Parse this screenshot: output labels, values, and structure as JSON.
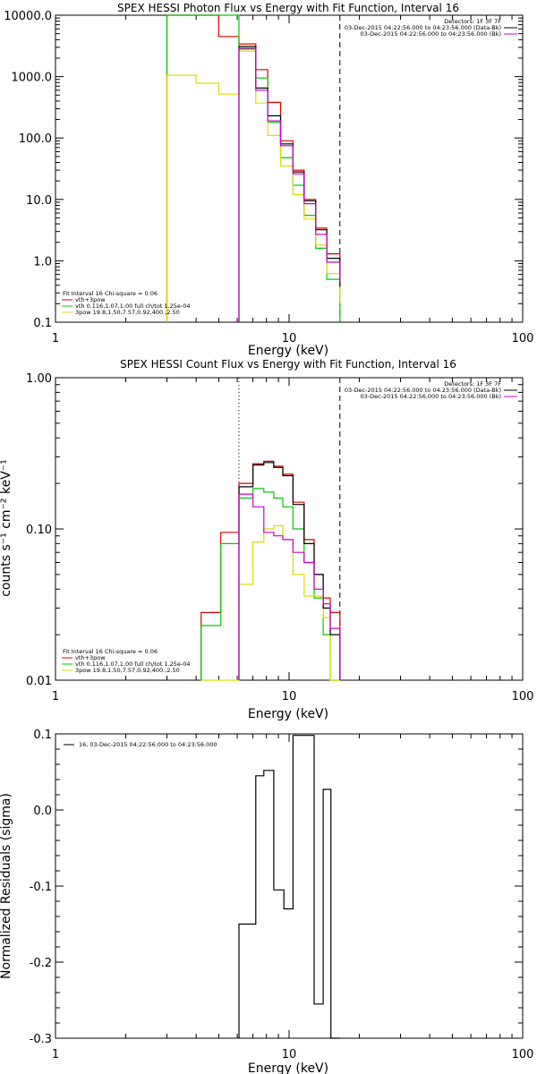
{
  "chart_data": [
    {
      "type": "line",
      "title": "SPEX HESSI Photon Flux vs Energy with Fit Function, Interval 16",
      "xlabel": "Energy (keV)",
      "xscale": "log",
      "yscale": "log",
      "xlim": [
        1,
        100
      ],
      "ylim": [
        0.1,
        10000
      ],
      "xticks": [
        "1",
        "10",
        "100"
      ],
      "yticks": [
        "0.1",
        "1.0",
        "10.0",
        "100.0",
        "1000.0",
        "10000.0"
      ],
      "vlines": [
        {
          "x": 6.1,
          "style": "dotted"
        },
        {
          "x": 16.5,
          "style": "dashed"
        }
      ],
      "legend_top_right": [
        "Detectors: 1F 3F 7F",
        "03-Dec-2015 04:22:56.000 to 04:23:56.000 (Data-Bk)",
        "03-Dec-2015 04:22:56.000 to 04:23:56.000 (Bk)"
      ],
      "legend_bottom_left": [
        "Fit Interval 16   Chi-square = 0.06",
        "vth+3pow",
        "vth 0.116,1.07,1.00  full ch/tot 1.25e-04",
        "3pow 19.8,1.50,7.57,0.92,400.,2.50"
      ],
      "colors": {
        "data": "#000000",
        "bk": "#cc00cc",
        "total": "#dd0000",
        "vth": "#00cc00",
        "pow": "#dddd00"
      },
      "edges": [
        3.0,
        4.0,
        5.0,
        6.1,
        7.2,
        8.1,
        9.2,
        10.4,
        11.6,
        13.0,
        14.5,
        16.5
      ],
      "series": [
        {
          "name": "vth+3pow",
          "color": "#dd0000",
          "values": [
            10000,
            10000,
            4500,
            3400,
            1300,
            380,
            90,
            30,
            10,
            3.4,
            1.3,
            0.5
          ]
        },
        {
          "name": "vth",
          "color": "#00cc00",
          "values": [
            10000,
            10000,
            10000,
            2800,
            950,
            180,
            48,
            17,
            5.5,
            1.6,
            0.5,
            0.1
          ]
        },
        {
          "name": "3pow",
          "color": "#dddd00",
          "values": [
            1050,
            780,
            520,
            2600,
            370,
            110,
            35,
            12,
            4.8,
            1.8,
            0.62,
            0.2
          ]
        },
        {
          "name": "Data-Bk",
          "color": "#000000",
          "values": [
            null,
            null,
            null,
            3100,
            650,
            230,
            80,
            28,
            9.5,
            3.2,
            1.1,
            0.38
          ]
        },
        {
          "name": "Bk",
          "color": "#cc00cc",
          "values": [
            null,
            null,
            null,
            2900,
            600,
            190,
            75,
            26,
            8.5,
            2.7,
            0.95,
            0.45
          ]
        }
      ]
    },
    {
      "type": "line",
      "title": "SPEX HESSI Count Flux vs Energy with Fit Function, Interval 16",
      "xlabel": "Energy (keV)",
      "ylabel": "counts s⁻¹ cm⁻² keV⁻¹",
      "xscale": "log",
      "yscale": "log",
      "xlim": [
        1,
        100
      ],
      "ylim": [
        0.01,
        1.0
      ],
      "xticks": [
        "1",
        "10",
        "100"
      ],
      "yticks": [
        "0.01",
        "0.10",
        "1.00"
      ],
      "vlines": [
        {
          "x": 6.1,
          "style": "dotted"
        },
        {
          "x": 16.5,
          "style": "dashed"
        }
      ],
      "legend_top_right": [
        "Detectors: 1F 3F 7F",
        "03-Dec-2015 04:22:56.000 to 04:23:56.000 (Data-Bk)",
        "03-Dec-2015 04:22:56.000 to 04:23:56.000 (Bk)"
      ],
      "legend_bottom_left": [
        "Fit Interval 16   Chi-square = 0.06",
        "vth+3pow",
        "vth 0.116,1.07,1.00  full ch/tot 1.25e-04",
        "3pow 19.8,1.50,7.57,0.92,400.,2.50"
      ],
      "edges": [
        4.2,
        5.1,
        6.1,
        7.0,
        7.8,
        8.6,
        9.4,
        10.4,
        11.6,
        12.8,
        14.0,
        15.0,
        16.5
      ],
      "series": [
        {
          "name": "vth+3pow",
          "color": "#dd0000",
          "values": [
            0.028,
            0.095,
            0.2,
            0.27,
            0.28,
            0.26,
            0.23,
            0.15,
            0.085,
            0.05,
            0.035,
            0.028
          ]
        },
        {
          "name": "vth",
          "color": "#00cc00",
          "values": [
            0.023,
            0.08,
            0.16,
            0.185,
            0.175,
            0.16,
            0.14,
            0.1,
            0.06,
            0.035,
            0.02,
            0.01
          ]
        },
        {
          "name": "3pow",
          "color": "#dddd00",
          "values": [
            0.008,
            0.009,
            0.043,
            0.082,
            0.1,
            0.105,
            0.085,
            0.05,
            0.036,
            0.036,
            0.026,
            0.01
          ]
        },
        {
          "name": "Data-Bk",
          "color": "#000000",
          "values": [
            null,
            null,
            0.19,
            0.265,
            0.275,
            0.255,
            0.225,
            0.145,
            0.08,
            0.05,
            0.03,
            0.02
          ]
        },
        {
          "name": "Bk",
          "color": "#cc00cc",
          "values": [
            null,
            null,
            0.17,
            0.14,
            0.095,
            0.09,
            0.085,
            0.07,
            0.06,
            0.04,
            0.032,
            0.022
          ]
        }
      ]
    },
    {
      "type": "line",
      "title": "",
      "xlabel": "Energy (keV)",
      "ylabel": "Normalized Residuals (sigma)",
      "xscale": "log",
      "yscale": "linear",
      "xlim": [
        1,
        100
      ],
      "ylim": [
        -0.3,
        0.1
      ],
      "xticks": [
        "1",
        "10",
        "100"
      ],
      "yticks": [
        "-0.3",
        "-0.2",
        "-0.1",
        "0.0",
        "0.1"
      ],
      "legend": "16, 03-Dec-2015 04:22:56.000 to 04:23:56.000",
      "edges": [
        6.1,
        7.2,
        7.8,
        8.6,
        9.5,
        10.4,
        11.3,
        12.8,
        14.0,
        15.1,
        16.5
      ],
      "series": [
        {
          "name": "",
          "color": "#000000",
          "values": [
            -0.15,
            0.045,
            0.052,
            -0.105,
            -0.13,
            0.098,
            0.098,
            -0.255,
            0.027,
            -0.3
          ]
        }
      ]
    }
  ]
}
